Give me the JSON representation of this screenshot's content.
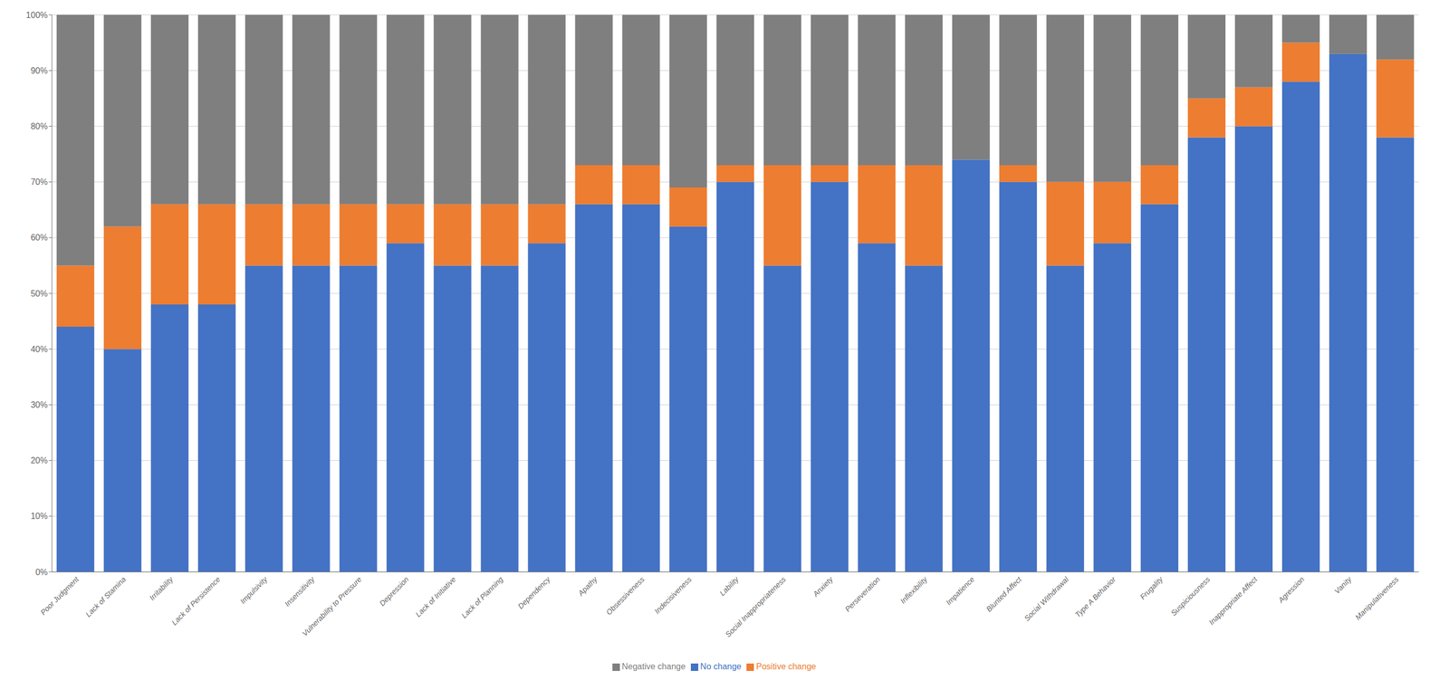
{
  "chart_data": {
    "type": "bar",
    "stacked": true,
    "grid": true,
    "legend": "bottom",
    "categories": [
      "Poor Judgment",
      "Lack of Stamina",
      "Irritability",
      "Lack of Persistence",
      "Impulsivity",
      "Insensitivity",
      "Vulnerability to Pressure",
      "Depression",
      "Lack of Initiative",
      "Lack of Planning",
      "Dependency",
      "Apathy",
      "Obsessiveness",
      "Indecisiveness",
      "Lability",
      "Social Inappropriateness",
      "Anxiety",
      "Perseveration",
      "Inflexibility",
      "Impatience",
      "Blunted Affect",
      "Social Withdrawal",
      "Type A Behavior",
      "Frugality",
      "Suspiciousness",
      "Inappropriate Affect",
      "Agression",
      "Vanity",
      "Manipulativeness"
    ],
    "series": [
      {
        "name": "No change",
        "color": "#4472C4",
        "values": [
          44,
          40,
          48,
          48,
          55,
          55,
          55,
          59,
          55,
          55,
          59,
          66,
          66,
          62,
          70,
          55,
          70,
          59,
          55,
          74,
          70,
          55,
          59,
          66,
          78,
          80,
          88,
          93,
          78
        ]
      },
      {
        "name": "Positive change",
        "color": "#ED7D31",
        "values": [
          11,
          22,
          18,
          18,
          11,
          11,
          11,
          7,
          11,
          11,
          7,
          7,
          7,
          7,
          3,
          18,
          3,
          14,
          18,
          0,
          3,
          15,
          11,
          7,
          7,
          7,
          7,
          0,
          14
        ]
      },
      {
        "name": "Negative change",
        "color": "#7F7F7F",
        "values": [
          45,
          38,
          34,
          34,
          34,
          34,
          34,
          34,
          34,
          34,
          34,
          27,
          27,
          31,
          27,
          27,
          27,
          27,
          27,
          26,
          27,
          30,
          30,
          27,
          15,
          13,
          5,
          7,
          8
        ]
      }
    ],
    "ylim": [
      0,
      100
    ],
    "yticks": [
      {
        "value": 0,
        "label": "0%"
      },
      {
        "value": 10,
        "label": "10%"
      },
      {
        "value": 20,
        "label": "20%"
      },
      {
        "value": 30,
        "label": "30%"
      },
      {
        "value": 40,
        "label": "40%"
      },
      {
        "value": 50,
        "label": "50%"
      },
      {
        "value": 60,
        "label": "60%"
      },
      {
        "value": 70,
        "label": "70%"
      },
      {
        "value": 80,
        "label": "80%"
      },
      {
        "value": 90,
        "label": "90%"
      },
      {
        "value": 100,
        "label": "100%"
      }
    ]
  }
}
